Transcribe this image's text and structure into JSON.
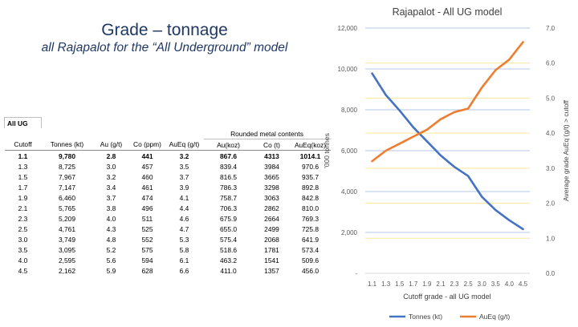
{
  "slide": {
    "title": "Grade – tonnage",
    "subtitle": "all Rajapalot for the “All Underground” model"
  },
  "table": {
    "corner": "All UG",
    "group_header": "Rounded metal contents",
    "headers": [
      "Cutoff",
      "Tonnes (kt)",
      "Au (g/t)",
      "Co (ppm)",
      "AuEq (g/t)",
      "Au(koz)",
      "Co (t)",
      "AuEq(koz)"
    ],
    "rows": [
      [
        "1.1",
        "9,780",
        "2.8",
        "441",
        "3.2",
        "867.6",
        "4313",
        "1014.1"
      ],
      [
        "1.3",
        "8,725",
        "3.0",
        "457",
        "3.5",
        "839.4",
        "3984",
        "970.6"
      ],
      [
        "1.5",
        "7,967",
        "3.2",
        "460",
        "3.7",
        "816.5",
        "3665",
        "935.7"
      ],
      [
        "1.7",
        "7,147",
        "3.4",
        "461",
        "3.9",
        "786.3",
        "3298",
        "892.8"
      ],
      [
        "1.9",
        "6,460",
        "3.7",
        "474",
        "4.1",
        "758.7",
        "3063",
        "842.8"
      ],
      [
        "2.1",
        "5,765",
        "3.8",
        "496",
        "4.4",
        "706.3",
        "2862",
        "810.0"
      ],
      [
        "2.3",
        "5,209",
        "4.0",
        "511",
        "4.6",
        "675.9",
        "2664",
        "769.3"
      ],
      [
        "2.5",
        "4,761",
        "4.3",
        "525",
        "4.7",
        "655.0",
        "2499",
        "725.8"
      ],
      [
        "3.0",
        "3,749",
        "4.8",
        "552",
        "5.3",
        "575.4",
        "2068",
        "641.9"
      ],
      [
        "3.5",
        "3,095",
        "5.2",
        "575",
        "5.8",
        "518.6",
        "1781",
        "573.4"
      ],
      [
        "4.0",
        "2,595",
        "5.6",
        "594",
        "6.1",
        "463.2",
        "1541",
        "509.6"
      ],
      [
        "4.5",
        "2,162",
        "5.9",
        "628",
        "6.6",
        "411.0",
        "1357",
        "456.0"
      ]
    ]
  },
  "chart_data": {
    "type": "line",
    "title": "Rajapalot - All UG model",
    "xlabel": "Cutoff grade - all UG model",
    "ylabel_left": "'000 tonnes",
    "ylabel_right": "Average grade AuEq (g/t) > cutoff",
    "categories": [
      "1.1",
      "1.3",
      "1.5",
      "1.7",
      "1.9",
      "2.1",
      "2.3",
      "2.5",
      "3.0",
      "3.5",
      "4.0",
      "4.5"
    ],
    "ylim_left": [
      0,
      12000
    ],
    "ylim_right": [
      0,
      7
    ],
    "yticks_left": [
      "-",
      "2,000",
      "4,000",
      "6,000",
      "8,000",
      "10,000",
      "12,000"
    ],
    "yticks_right": [
      "0.0",
      "1.0",
      "2.0",
      "3.0",
      "4.0",
      "5.0",
      "6.0",
      "7.0"
    ],
    "grid": true,
    "legend_position": "bottom",
    "series": [
      {
        "name": "Tonnes (kt)",
        "axis": "left",
        "color": "#4472c4",
        "values": [
          9780,
          8725,
          7967,
          7147,
          6460,
          5765,
          5209,
          4761,
          3749,
          3095,
          2595,
          2162
        ]
      },
      {
        "name": "AuEq (g/t)",
        "axis": "right",
        "color": "#ed7d31",
        "values": [
          3.2,
          3.5,
          3.7,
          3.9,
          4.1,
          4.4,
          4.6,
          4.7,
          5.3,
          5.8,
          6.1,
          6.6
        ]
      }
    ],
    "gridline_colors": {
      "left": "#b4c7e7",
      "right": "#ffe699"
    }
  }
}
